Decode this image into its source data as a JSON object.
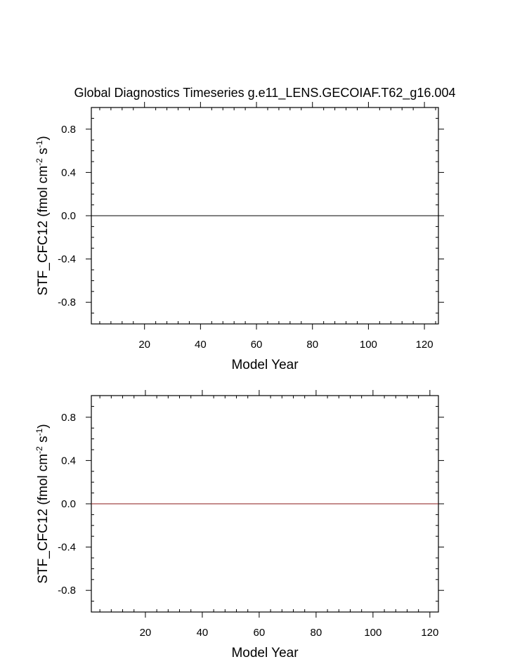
{
  "figure": {
    "title": "Global Diagnostics Timeseries g.e11_LENS.GECOIAF.T62_g16.004"
  },
  "chart_data": [
    {
      "type": "line",
      "xlabel": "Model Year",
      "ylabel_main": "STF_CFC12 (fmol cm",
      "ylabel_exp1": "-2",
      "ylabel_mid": " s",
      "ylabel_exp2": "-1",
      "ylabel_end": ")",
      "xlim": [
        1,
        125
      ],
      "ylim": [
        -1,
        1
      ],
      "x_ticks": [
        20,
        40,
        60,
        80,
        100,
        120
      ],
      "x_minor_step": 4,
      "y_ticks": [
        -0.8,
        -0.4,
        0.0,
        0.4,
        0.8
      ],
      "y_tick_labels": [
        "-0.8",
        "-0.4",
        "0.0",
        "0.4",
        "0.8"
      ],
      "y_minor_step": 0.1,
      "series": [
        {
          "color": "#000000",
          "x": [
            1,
            125
          ],
          "y": [
            0.0,
            0.0
          ]
        }
      ]
    },
    {
      "type": "line",
      "xlabel": "Model Year",
      "ylabel_main": "STF_CFC12 (fmol cm",
      "ylabel_exp1": "-2",
      "ylabel_mid": " s",
      "ylabel_exp2": "-1",
      "ylabel_end": ")",
      "xlim": [
        1,
        123
      ],
      "ylim": [
        -1,
        1
      ],
      "x_ticks": [
        20,
        40,
        60,
        80,
        100,
        120
      ],
      "x_minor_step": 4,
      "y_ticks": [
        -0.8,
        -0.4,
        0.0,
        0.4,
        0.8
      ],
      "y_tick_labels": [
        "-0.8",
        "-0.4",
        "0.0",
        "0.4",
        "0.8"
      ],
      "y_minor_step": 0.1,
      "series": [
        {
          "color": "#8b1a1a",
          "x": [
            1,
            123
          ],
          "y": [
            0.0,
            0.0
          ]
        }
      ]
    }
  ]
}
